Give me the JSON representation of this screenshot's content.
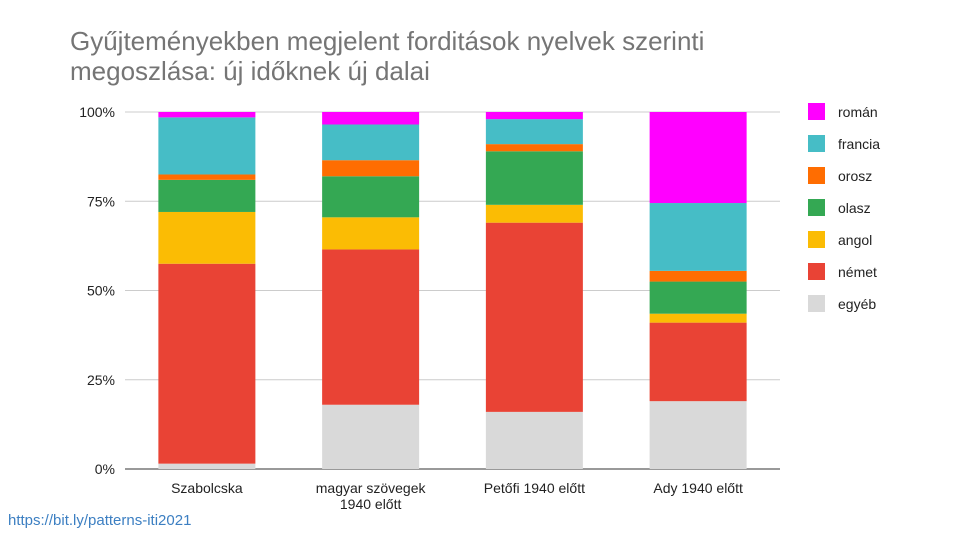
{
  "chart_data": {
    "type": "bar",
    "stacked": true,
    "title_lines": [
      "Gyűjteményekben megjelent forditások nyelvek szerinti",
      "megoszlása: új időknek új dalai"
    ],
    "categories": [
      [
        "Szabolcska"
      ],
      [
        "magyar szövegek",
        "1940 előtt"
      ],
      [
        "Petőfi 1940 előtt"
      ],
      [
        "Ady 1940 előtt"
      ]
    ],
    "y_ticks": [
      "0%",
      "25%",
      "50%",
      "75%",
      "100%"
    ],
    "ylim": [
      0,
      100
    ],
    "legend_position": "right",
    "series": [
      {
        "name": "egyéb",
        "color": "#d9d9d9",
        "values": [
          1.5,
          18,
          16,
          19
        ]
      },
      {
        "name": "német",
        "color": "#e94335",
        "values": [
          56,
          43.5,
          53,
          22
        ]
      },
      {
        "name": "angol",
        "color": "#fbbc04",
        "values": [
          14.5,
          9,
          5,
          2.5
        ]
      },
      {
        "name": "olasz",
        "color": "#34a853",
        "values": [
          9,
          11.5,
          15,
          9
        ]
      },
      {
        "name": "orosz",
        "color": "#ff6d01",
        "values": [
          1.5,
          4.5,
          2,
          3
        ]
      },
      {
        "name": "francia",
        "color": "#46bdc6",
        "values": [
          16,
          10,
          7,
          19
        ]
      },
      {
        "name": "román",
        "color": "#ff00ff",
        "values": [
          1.5,
          3.5,
          2,
          25.5
        ]
      }
    ],
    "legend_order": [
      "román",
      "francia",
      "orosz",
      "olasz",
      "angol",
      "német",
      "egyéb"
    ]
  },
  "footer": {
    "link_text": "https://bit.ly/patterns-iti2021"
  }
}
